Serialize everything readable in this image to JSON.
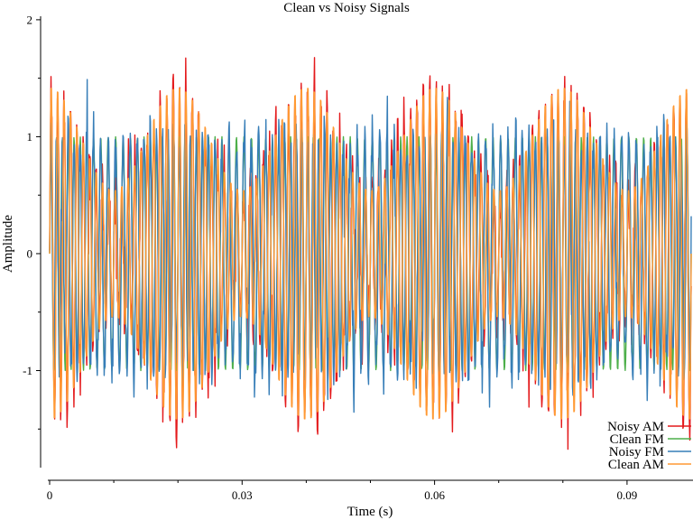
{
  "chart_data": {
    "type": "line",
    "title": "Clean vs Noisy Signals",
    "xlabel": "Time (s)",
    "ylabel": "Amplitude",
    "xlim": [
      0,
      0.1
    ],
    "ylim": [
      -1.83,
      2.03
    ],
    "x_ticks": [
      {
        "value": 0,
        "label": "0"
      },
      {
        "value": 0.03,
        "label": "0.03"
      },
      {
        "value": 0.06,
        "label": "0.06"
      },
      {
        "value": 0.09,
        "label": "0.09"
      }
    ],
    "x_minor_ticks": [
      0.01,
      0.02,
      0.04,
      0.05,
      0.07,
      0.08
    ],
    "y_ticks": [
      {
        "value": -1,
        "label": "-1"
      },
      {
        "value": 0,
        "label": "0"
      },
      {
        "value": 1,
        "label": "1"
      },
      {
        "value": 2,
        "label": "2"
      }
    ],
    "y_minor_ticks": [
      -1.5,
      -0.5,
      0.5,
      1.5
    ],
    "grid": false,
    "legend_position": "bottom-right",
    "series": [
      {
        "name": "Noisy AM",
        "color": "#e41a1c",
        "kind": "am",
        "noise": 0.13,
        "x": [
          0,
          0.1
        ],
        "carrier_hz": 1000,
        "mod_hz": 50,
        "depth": 0.45
      },
      {
        "name": "Clean FM",
        "color": "#4daf4a",
        "kind": "fm",
        "noise": 0,
        "x": [
          0,
          0.1
        ],
        "carrier_hz": 1000,
        "mod_hz": 50,
        "mod_index": 3
      },
      {
        "name": "Noisy FM",
        "color": "#377eb8",
        "kind": "fm",
        "noise": 0.13,
        "x": [
          0,
          0.1
        ],
        "carrier_hz": 1000,
        "mod_hz": 50,
        "mod_index": 3
      },
      {
        "name": "Clean AM",
        "color": "#ff9933",
        "kind": "am",
        "noise": 0,
        "x": [
          0,
          0.1
        ],
        "carrier_hz": 1000,
        "mod_hz": 50,
        "depth": 0.45
      }
    ]
  }
}
